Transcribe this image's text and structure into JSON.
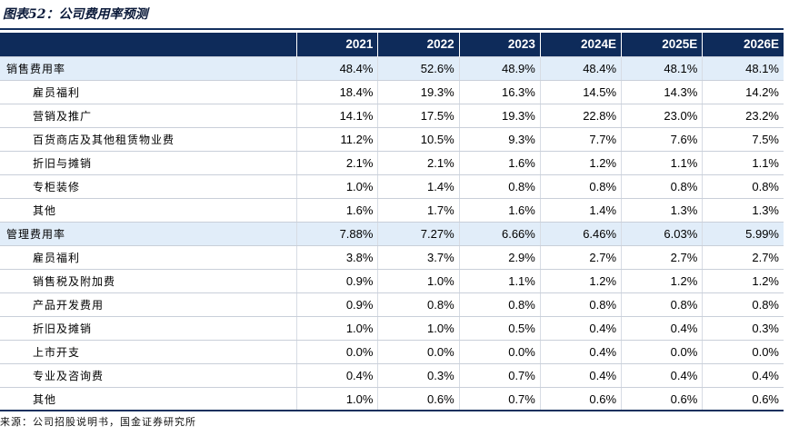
{
  "title": "图表52：公司费用率预测",
  "header": [
    "2021",
    "2022",
    "2023",
    "2024E",
    "2025E",
    "2026E"
  ],
  "rows": [
    {
      "label": "销售费用率",
      "type": "main",
      "values": [
        "48.4%",
        "52.6%",
        "48.9%",
        "48.4%",
        "48.1%",
        "48.1%"
      ]
    },
    {
      "label": "雇员福利",
      "type": "sub",
      "values": [
        "18.4%",
        "19.3%",
        "16.3%",
        "14.5%",
        "14.3%",
        "14.2%"
      ]
    },
    {
      "label": "营销及推广",
      "type": "sub",
      "values": [
        "14.1%",
        "17.5%",
        "19.3%",
        "22.8%",
        "23.0%",
        "23.2%"
      ]
    },
    {
      "label": "百货商店及其他租赁物业费",
      "type": "sub",
      "values": [
        "11.2%",
        "10.5%",
        "9.3%",
        "7.7%",
        "7.6%",
        "7.5%"
      ]
    },
    {
      "label": "折旧与摊销",
      "type": "sub",
      "values": [
        "2.1%",
        "2.1%",
        "1.6%",
        "1.2%",
        "1.1%",
        "1.1%"
      ]
    },
    {
      "label": "专柜装修",
      "type": "sub",
      "values": [
        "1.0%",
        "1.4%",
        "0.8%",
        "0.8%",
        "0.8%",
        "0.8%"
      ]
    },
    {
      "label": "其他",
      "type": "sub",
      "values": [
        "1.6%",
        "1.7%",
        "1.6%",
        "1.4%",
        "1.3%",
        "1.3%"
      ]
    },
    {
      "label": "管理费用率",
      "type": "main",
      "values": [
        "7.88%",
        "7.27%",
        "6.66%",
        "6.46%",
        "6.03%",
        "5.99%"
      ]
    },
    {
      "label": "雇员福利",
      "type": "sub",
      "values": [
        "3.8%",
        "3.7%",
        "2.9%",
        "2.7%",
        "2.7%",
        "2.7%"
      ]
    },
    {
      "label": "销售税及附加费",
      "type": "sub",
      "values": [
        "0.9%",
        "1.0%",
        "1.1%",
        "1.2%",
        "1.2%",
        "1.2%"
      ]
    },
    {
      "label": "产品开发费用",
      "type": "sub",
      "values": [
        "0.9%",
        "0.8%",
        "0.8%",
        "0.8%",
        "0.8%",
        "0.8%"
      ]
    },
    {
      "label": "折旧及摊销",
      "type": "sub",
      "values": [
        "1.0%",
        "1.0%",
        "0.5%",
        "0.4%",
        "0.4%",
        "0.3%"
      ]
    },
    {
      "label": "上市开支",
      "type": "sub",
      "values": [
        "0.0%",
        "0.0%",
        "0.0%",
        "0.4%",
        "0.0%",
        "0.0%"
      ]
    },
    {
      "label": "专业及咨询费",
      "type": "sub",
      "values": [
        "0.4%",
        "0.3%",
        "0.7%",
        "0.4%",
        "0.4%",
        "0.4%"
      ]
    },
    {
      "label": "其他",
      "type": "sub",
      "values": [
        "1.0%",
        "0.6%",
        "0.7%",
        "0.6%",
        "0.6%",
        "0.6%"
      ]
    }
  ],
  "source": "来源：公司招股说明书，国金证券研究所",
  "colors": {
    "header_bg": "#0e2b5a",
    "section_bg": "#e1edf9",
    "rule": "#13305e"
  }
}
